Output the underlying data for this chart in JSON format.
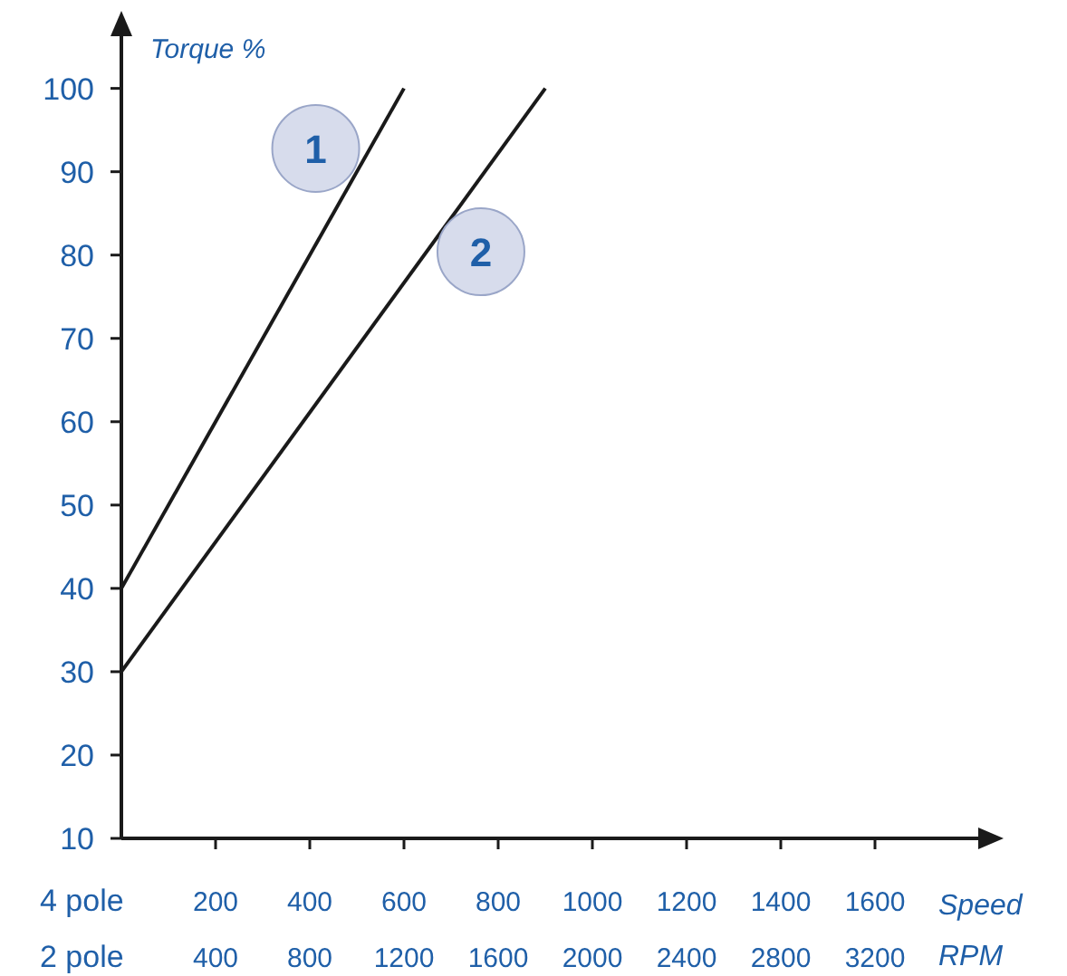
{
  "chart_data": {
    "type": "line",
    "ylabel": "Torque %",
    "xlabel": "Speed RPM",
    "xlim": [
      0,
      1850
    ],
    "xticks": [
      200,
      400,
      600,
      800,
      1000,
      1200,
      1400,
      1600
    ],
    "x2lim": [
      0,
      3700
    ],
    "x2ticks": [
      400,
      800,
      1200,
      1600,
      2000,
      2400,
      2800,
      3200
    ],
    "ylim": [
      10,
      108
    ],
    "yticks": [
      10,
      20,
      30,
      40,
      50,
      60,
      70,
      80,
      90,
      100
    ],
    "annotations": [
      "4 pole",
      "2 pole"
    ],
    "grid": false,
    "marker": "none",
    "line_style": "solid",
    "series": [
      {
        "name": "1",
        "color": "#1a1a1a",
        "x": [
          0,
          600
        ],
        "values": [
          40,
          100
        ]
      },
      {
        "name": "2",
        "color": "#1a1a1a",
        "x": [
          0,
          900
        ],
        "values": [
          30,
          100
        ]
      }
    ]
  }
}
